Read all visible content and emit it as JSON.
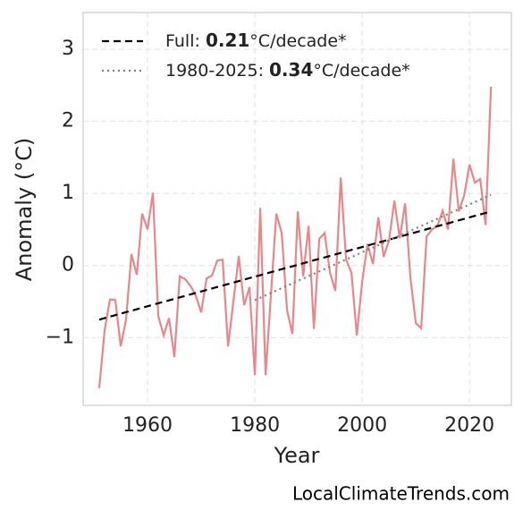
{
  "chart_data": {
    "type": "line",
    "x_label": "Year",
    "y_label": "Anomaly (°C)",
    "watermark": "LocalClimateTrends.com",
    "xlim": [
      1948,
      2027.8
    ],
    "ylim": [
      -1.94,
      3.51
    ],
    "xticks": [
      1960,
      1980,
      2000,
      2020
    ],
    "yticks": [
      {
        "value": -1,
        "label": "−1"
      },
      0,
      1,
      2,
      3
    ],
    "grid": true,
    "legend": "upper left",
    "series": [
      {
        "color": "#e8868a",
        "x": [
          1951,
          1952,
          1953,
          1954,
          1955,
          1956,
          1957,
          1958,
          1959,
          1960,
          1961,
          1962,
          1963,
          1964,
          1965,
          1966,
          1967,
          1968,
          1969,
          1970,
          1971,
          1972,
          1973,
          1974,
          1975,
          1976,
          1977,
          1978,
          1979,
          1980,
          1981,
          1982,
          1983,
          1984,
          1985,
          1986,
          1987,
          1988,
          1989,
          1990,
          1991,
          1992,
          1993,
          1994,
          1995,
          1996,
          1997,
          1998,
          1999,
          2000,
          2001,
          2002,
          2003,
          2004,
          2005,
          2006,
          2007,
          2008,
          2009,
          2010,
          2011,
          2012,
          2013,
          2014,
          2015,
          2016,
          2017,
          2018,
          2019,
          2020,
          2021,
          2022,
          2023,
          2024
        ],
        "values": [
          -1.7,
          -0.9,
          -0.47,
          -0.48,
          -1.12,
          -0.75,
          0.16,
          -0.13,
          0.72,
          0.5,
          1.01,
          -0.7,
          -0.97,
          -0.73,
          -1.27,
          -0.15,
          -0.19,
          -0.28,
          -0.42,
          -0.65,
          -0.18,
          -0.14,
          0.07,
          0.08,
          -1.12,
          -0.5,
          0.13,
          -0.55,
          -0.3,
          -1.52,
          0.8,
          -1.52,
          -0.4,
          0.72,
          0.45,
          -0.62,
          -0.95,
          0.75,
          -0.15,
          0.55,
          -0.88,
          0.37,
          0.45,
          -0.1,
          -0.35,
          1.22,
          0.08,
          -0.1,
          -0.97,
          -0.22,
          0.3,
          0.02,
          0.67,
          0.12,
          0.35,
          0.9,
          0.38,
          0.86,
          -0.18,
          -0.8,
          -0.87,
          0.4,
          0.5,
          0.55,
          0.76,
          0.5,
          1.48,
          0.75,
          0.97,
          1.4,
          1.15,
          1.2,
          0.56,
          2.48
        ]
      },
      {
        "color": "#000000",
        "dash": "8 5",
        "name_parts": [
          "Full: ",
          "0.21",
          "°C/decade*"
        ],
        "x": [
          1951,
          2024
        ],
        "values": [
          -0.75,
          0.75
        ]
      },
      {
        "color": "#808080",
        "dash": "2 4",
        "name_parts": [
          "1980-2025: ",
          "0.34",
          "°C/decade*"
        ],
        "x": [
          1980,
          2024
        ],
        "values": [
          -0.48,
          0.98
        ]
      }
    ]
  }
}
